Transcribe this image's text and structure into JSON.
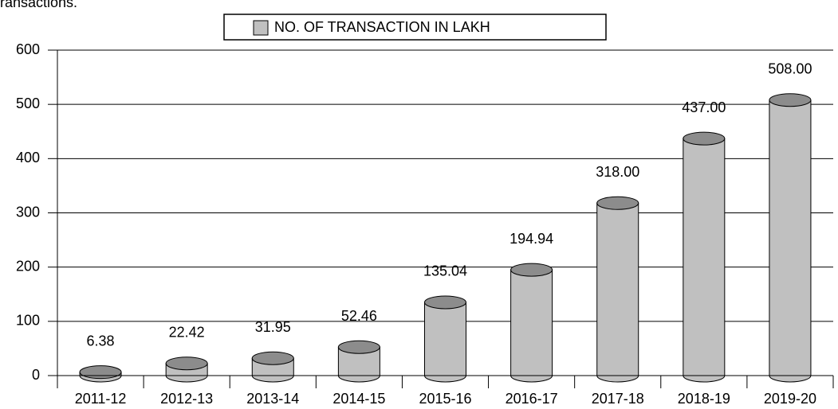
{
  "chart_data": {
    "type": "bar",
    "caption": "ransactions.",
    "categories": [
      "2011-12",
      "2012-13",
      "2013-14",
      "2014-15",
      "2015-16",
      "2016-17",
      "2017-18",
      "2018-19",
      "2019-20"
    ],
    "series": [
      {
        "name": "NO. OF TRANSACTION IN LAKH",
        "color": "#c0c0c0",
        "values": [
          6.38,
          22.42,
          31.95,
          52.46,
          135.04,
          194.94,
          318,
          437,
          508
        ],
        "value_labels": [
          "6.38",
          "22.42",
          "31.95",
          "52.46",
          "135.04",
          "194.94",
          "318.00",
          "437.00",
          "508.00"
        ]
      }
    ],
    "ylim": [
      0,
      600
    ],
    "yticks": [
      0,
      100,
      200,
      300,
      400,
      500,
      600
    ],
    "grid": true,
    "legend": "top"
  }
}
